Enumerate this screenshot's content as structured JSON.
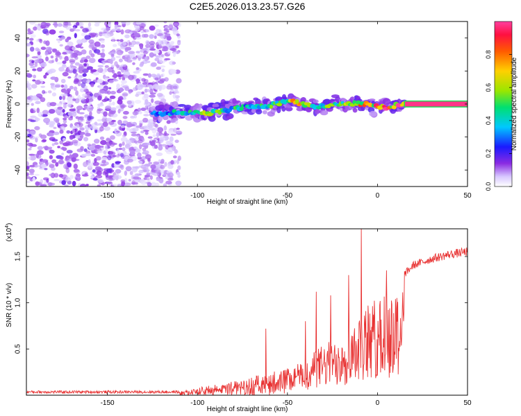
{
  "title": "C2E5.2026.013.23.57.G26",
  "chart_data": [
    {
      "type": "heatmap",
      "xlabel": "Height of straight line (km)",
      "ylabel": "Frequency (Hz)",
      "xlim": [
        -195,
        50
      ],
      "ylim": [
        -50,
        50
      ],
      "xticks": [
        -150,
        -100,
        -50,
        0,
        50
      ],
      "yticks": [
        -40,
        -20,
        0,
        20,
        40
      ],
      "colorbar": {
        "label": "Normalized spectral amplitude",
        "range": [
          0,
          1
        ],
        "ticks": [
          "0.0",
          "0.2",
          "0.4",
          "0.6",
          "0.8"
        ],
        "tick_values": [
          0,
          0.2,
          0.4,
          0.6,
          0.8
        ]
      },
      "noise_region_km": [
        -195,
        -110
      ],
      "ridge": [
        {
          "x": -125,
          "y": -6,
          "amp": 0.35
        },
        {
          "x": -110,
          "y": -5,
          "amp": 0.45
        },
        {
          "x": -100,
          "y": -5,
          "amp": 0.55
        },
        {
          "x": -95,
          "y": -6,
          "amp": 0.8
        },
        {
          "x": -85,
          "y": -4,
          "amp": 0.5
        },
        {
          "x": -75,
          "y": -2,
          "amp": 0.45
        },
        {
          "x": -60,
          "y": -1,
          "amp": 0.5
        },
        {
          "x": -50,
          "y": 2,
          "amp": 0.6
        },
        {
          "x": -45,
          "y": 1,
          "amp": 0.75
        },
        {
          "x": -35,
          "y": -2,
          "amp": 0.5
        },
        {
          "x": -25,
          "y": 0,
          "amp": 0.55
        },
        {
          "x": -15,
          "y": 0,
          "amp": 0.7
        },
        {
          "x": -5,
          "y": 0,
          "amp": 0.8
        },
        {
          "x": 5,
          "y": -2,
          "amp": 0.9
        },
        {
          "x": 15,
          "y": 0,
          "amp": 0.95
        },
        {
          "x": 50,
          "y": 0,
          "amp": 1.0
        }
      ]
    },
    {
      "type": "line",
      "xlabel": "Height of straight line (km)",
      "ylabel": "SNR (10 * v/v)",
      "yscale_label": "(x10",
      "yscale_exp": "4",
      "yscale_close": ")",
      "xlim": [
        -195,
        50
      ],
      "ylim": [
        0,
        1.8
      ],
      "xticks": [
        -150,
        -100,
        -50,
        0,
        50
      ],
      "yticks": [
        0.5,
        1.0,
        1.5
      ],
      "ytick_labels": [
        "0.5",
        "1.0",
        "1.5"
      ],
      "series": [
        {
          "name": "SNR",
          "color": "#e83232",
          "envelope_x": [
            -195,
            -150,
            -115,
            -105,
            -95,
            -80,
            -70,
            -60,
            -50,
            -45,
            -40,
            -35,
            -30,
            -25,
            -20,
            -15,
            -10,
            -5,
            0,
            5,
            10,
            15,
            20,
            30,
            40,
            50
          ],
          "envelope_y": [
            0.01,
            0.01,
            0.02,
            0.06,
            0.1,
            0.15,
            0.2,
            0.25,
            0.3,
            0.35,
            0.35,
            0.5,
            0.55,
            0.6,
            0.7,
            0.8,
            0.9,
            1.0,
            1.05,
            1.1,
            1.2,
            1.35,
            1.45,
            1.52,
            1.57,
            1.6
          ],
          "peaks": [
            {
              "x": -62,
              "y": 0.72
            },
            {
              "x": -40,
              "y": 0.8
            },
            {
              "x": -34,
              "y": 1.12
            },
            {
              "x": -26,
              "y": 1.08
            },
            {
              "x": -16,
              "y": 1.3
            },
            {
              "x": -9,
              "y": 1.82
            },
            {
              "x": 5,
              "y": 1.35
            }
          ]
        }
      ]
    }
  ]
}
